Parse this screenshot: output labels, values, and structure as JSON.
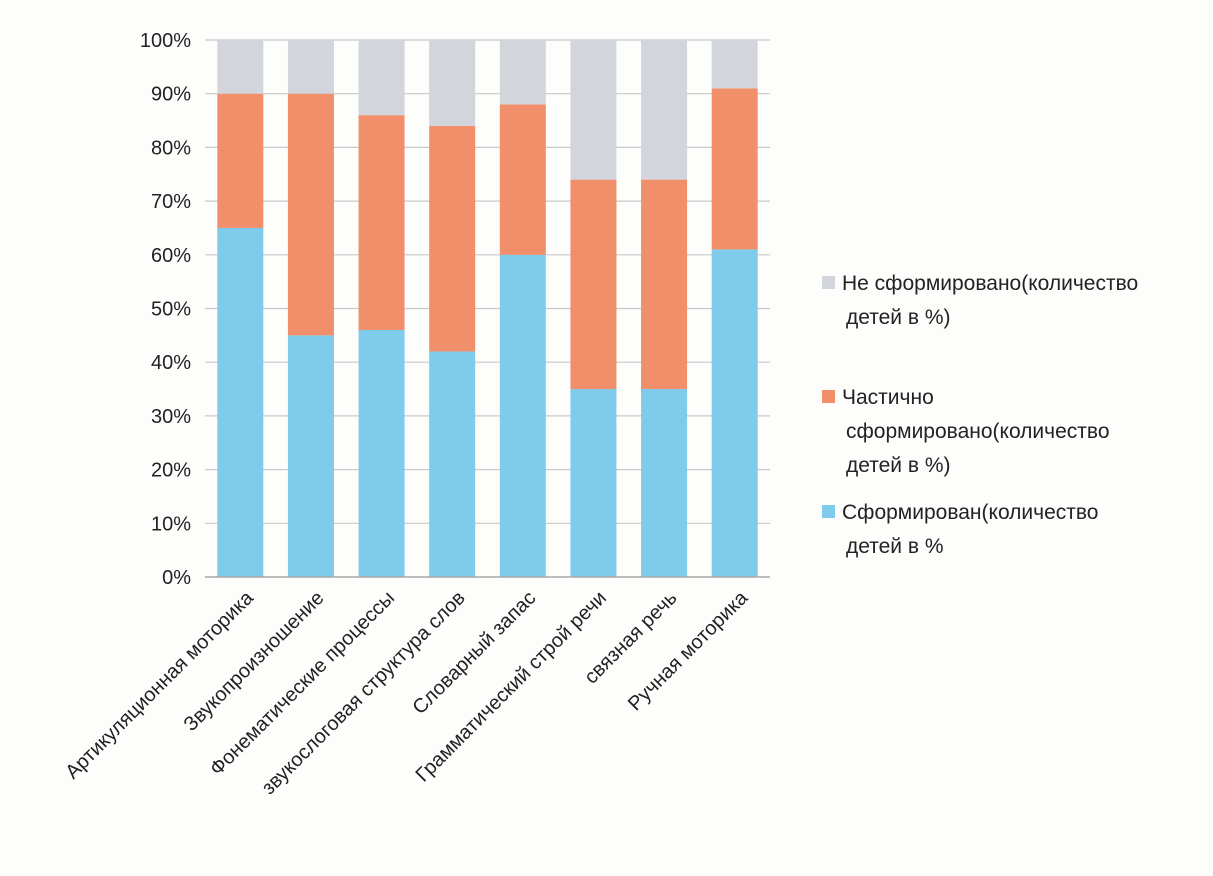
{
  "chart_data": {
    "type": "bar",
    "stacked": true,
    "percent_axis": true,
    "categories": [
      "Артикуляционная моторика",
      "Звукопроизношение",
      "Фонематические процессы",
      "звукослоговая структура слов",
      "Словарный запас",
      "Грамматический строй речи",
      "связная речь",
      "Ручная моторика"
    ],
    "series": [
      {
        "name": "Сформирован(количество детей в %",
        "legend_lines": [
          "Сформирован(количество",
          "детей в %"
        ],
        "color": "#7ecbec",
        "values": [
          65,
          45,
          46,
          42,
          60,
          35,
          35,
          61
        ]
      },
      {
        "name": "Частично сформировано(количество детей в %)",
        "legend_lines": [
          "Частично",
          "сформировано(количество",
          "детей в %)"
        ],
        "color": "#f08f6a",
        "values": [
          25,
          45,
          40,
          42,
          28,
          39,
          39,
          30
        ]
      },
      {
        "name": "Не сформировано(количество детей в %)",
        "legend_lines": [
          "Не сформировано(количество",
          "детей в %)"
        ],
        "color": "#d2d5dc",
        "values": [
          10,
          10,
          14,
          16,
          12,
          26,
          26,
          9
        ]
      }
    ],
    "y_ticks": [
      "0%",
      "10%",
      "20%",
      "30%",
      "40%",
      "50%",
      "60%",
      "70%",
      "80%",
      "90%",
      "100%"
    ],
    "ylim": [
      0,
      100
    ],
    "grid": true,
    "legend_position": "right",
    "legend_order": [
      2,
      1,
      0
    ],
    "title": "",
    "xlabel": "",
    "ylabel": ""
  }
}
